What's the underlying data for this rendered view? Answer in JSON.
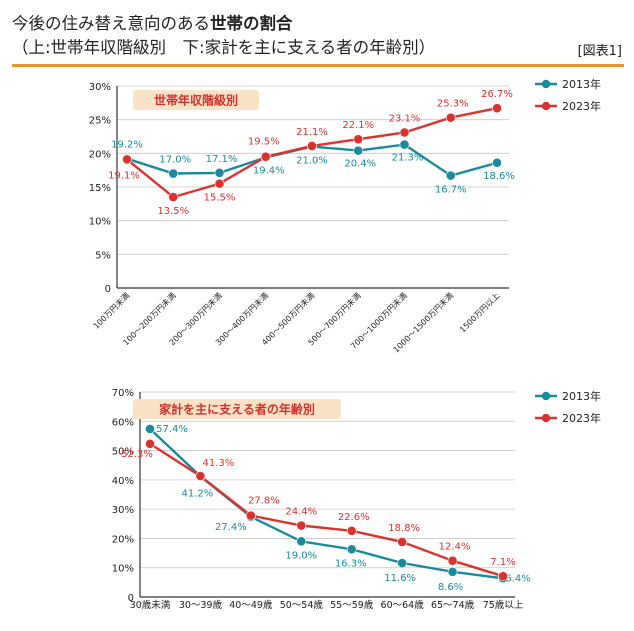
{
  "header": {
    "title_prefix": "今後の住み替え意向のある",
    "title_bold": "世帯の割合",
    "subtitle": "（上:世帯年収階級別　下:家計を主に支える者の年齢別）",
    "figure_label": "[図表1]"
  },
  "colors": {
    "s2013": "#1b8a9b",
    "s2023": "#d9332f",
    "chip_bg": "#f8e3c6",
    "accent": "#e8962c"
  },
  "chart_data": [
    {
      "type": "line",
      "title": "世帯年収階級別",
      "categories": [
        "100万円未満",
        "100～200万円未満",
        "200～300万円未満",
        "300～400万円未満",
        "400～500万円未満",
        "500～700万円未満",
        "700～1000万円未満",
        "1000～1500万円未満",
        "1500万円以上"
      ],
      "ylim": [
        0,
        30
      ],
      "yticks": [
        0,
        5,
        10,
        15,
        20,
        25,
        30
      ],
      "ytick_labels": [
        "0",
        "5%",
        "10%",
        "15%",
        "20%",
        "25%",
        "30%"
      ],
      "series": [
        {
          "name": "2013年",
          "values": [
            19.2,
            17.0,
            17.1,
            19.4,
            21.0,
            20.4,
            21.3,
            16.7,
            18.6
          ],
          "labels": [
            "19.2%",
            "17.0%",
            "17.1%",
            "19.4%",
            "21.0%",
            "20.4%",
            "21.3%",
            "16.7%",
            "18.6%"
          ]
        },
        {
          "name": "2023年",
          "values": [
            19.1,
            13.5,
            15.5,
            19.5,
            21.1,
            22.1,
            23.1,
            25.3,
            26.7
          ],
          "labels": [
            "19.1%",
            "13.5%",
            "15.5%",
            "19.5%",
            "21.1%",
            "22.1%",
            "23.1%",
            "25.3%",
            "26.7%"
          ]
        }
      ]
    },
    {
      "type": "line",
      "title": "家計を主に支える者の年齢別",
      "categories": [
        "30歳未満",
        "30～39歳",
        "40～49歳",
        "50～54歳",
        "55～59歳",
        "60～64歳",
        "65～74歳",
        "75歳以上"
      ],
      "ylim": [
        0,
        70
      ],
      "yticks": [
        0,
        10,
        20,
        30,
        40,
        50,
        60,
        70
      ],
      "ytick_labels": [
        "0",
        "10%",
        "20%",
        "30%",
        "40%",
        "50%",
        "60%",
        "70%"
      ],
      "series": [
        {
          "name": "2013年",
          "values": [
            57.4,
            41.2,
            27.4,
            19.0,
            16.3,
            11.6,
            8.6,
            6.4
          ],
          "labels": [
            "57.4%",
            "41.2%",
            "27.4%",
            "19.0%",
            "16.3%",
            "11.6%",
            "8.6%",
            "6.4%"
          ]
        },
        {
          "name": "2023年",
          "values": [
            52.3,
            41.3,
            27.8,
            24.4,
            22.6,
            18.8,
            12.4,
            7.1
          ],
          "labels": [
            "52.3%",
            "41.3%",
            "27.8%",
            "24.4%",
            "22.6%",
            "18.8%",
            "12.4%",
            "7.1%"
          ]
        }
      ]
    }
  ]
}
